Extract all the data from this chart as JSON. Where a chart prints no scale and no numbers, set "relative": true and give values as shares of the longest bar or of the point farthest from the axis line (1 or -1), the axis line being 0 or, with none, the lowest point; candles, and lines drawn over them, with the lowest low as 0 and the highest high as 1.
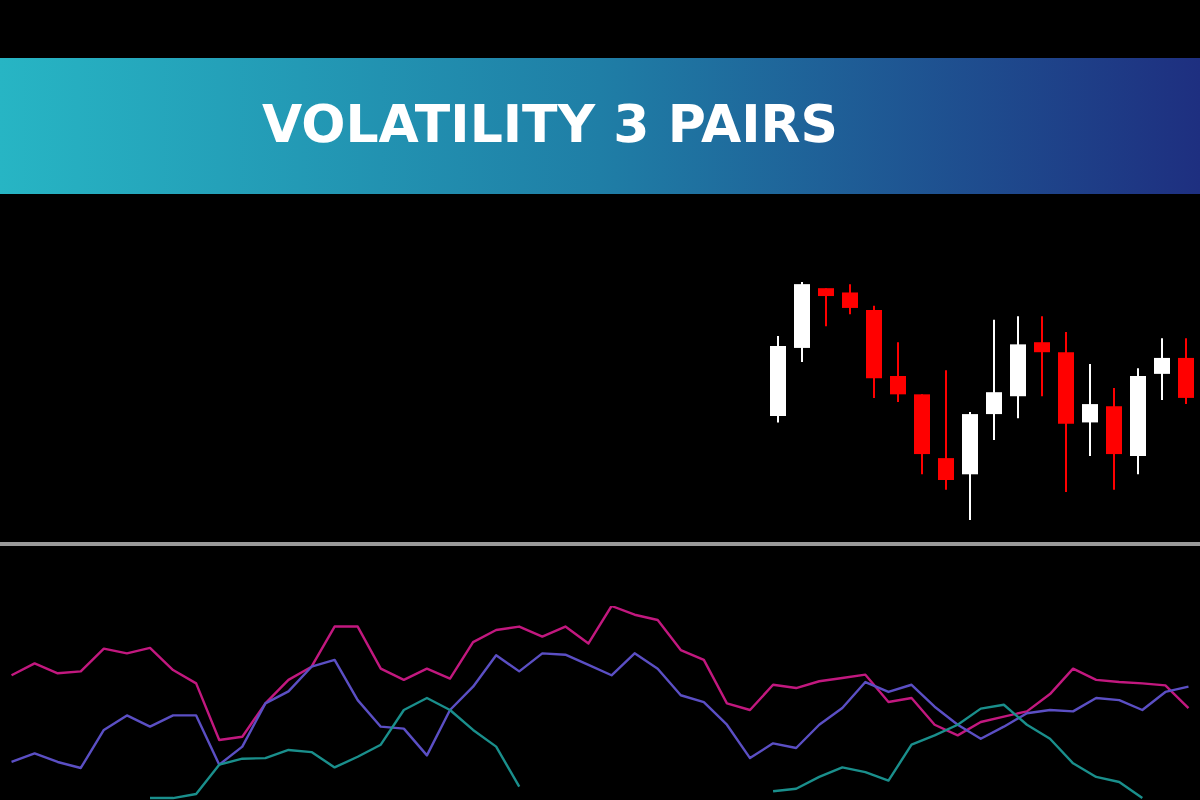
{
  "chart_data": [
    {
      "type": "candlestick",
      "title": "VOLATILITY 3 PAIRS",
      "relative": true,
      "categories": [
        null,
        null,
        null,
        null,
        null,
        null,
        null,
        null,
        null,
        null,
        null,
        null,
        null,
        null,
        null,
        null,
        null,
        null
      ],
      "ohlc": [
        [
          0.437,
          0.773,
          0.41,
          0.731
        ],
        [
          0.723,
          1,
          0.664,
          0.991
        ],
        [
          0.974,
          0.974,
          0.814,
          0.941
        ],
        [
          0.956,
          0.991,
          0.865,
          0.891
        ],
        [
          0.882,
          0.9,
          0.513,
          0.596
        ],
        [
          0.605,
          0.747,
          0.496,
          0.528
        ],
        [
          0.528,
          0.528,
          0.192,
          0.277
        ],
        [
          0.26,
          0.629,
          0.127,
          0.168
        ],
        [
          0.192,
          0.454,
          0,
          0.445
        ],
        [
          0.445,
          0.841,
          0.336,
          0.537
        ],
        [
          0.52,
          0.856,
          0.428,
          0.738
        ],
        [
          0.747,
          0.856,
          0.52,
          0.705
        ],
        [
          0.705,
          0.79,
          0.118,
          0.404
        ],
        [
          0.41,
          0.655,
          0.269,
          0.487
        ],
        [
          0.478,
          0.555,
          0.127,
          0.277
        ],
        [
          0.269,
          0.638,
          0.192,
          0.605
        ],
        [
          0.614,
          0.764,
          0.504,
          0.681
        ],
        [
          0.681,
          0.764,
          0.487,
          0.513
        ]
      ],
      "colors": [
        "#ffffff",
        "#ffffff",
        "#ff0000",
        "#ff0000",
        "#ff0000",
        "#ff0000",
        "#ff0000",
        "#ff0000",
        "#ffffff",
        "#ffffff",
        "#ffffff",
        "#ff0000",
        "#ff0000",
        "#ffffff",
        "#ff0000",
        "#ffffff",
        "#ffffff",
        "#ff0000"
      ]
    },
    {
      "type": "line",
      "relative": true,
      "categories": [
        null,
        null,
        null,
        null,
        null,
        null,
        null,
        null,
        null,
        null,
        null,
        null,
        null,
        null,
        null,
        null,
        null,
        null,
        null,
        null,
        null,
        null,
        null,
        null,
        null,
        null,
        null,
        null,
        null,
        null,
        null,
        null,
        null,
        null,
        null,
        null,
        null,
        null,
        null,
        null,
        null,
        null,
        null,
        null,
        null,
        null,
        null,
        null,
        null,
        null,
        null,
        null
      ],
      "series": [
        {
          "color": "#c2187f",
          "values": [
            0.643,
            0.704,
            0.653,
            0.663,
            0.78,
            0.756,
            0.784,
            0.67,
            0.601,
            0.309,
            0.326,
            0.498,
            0.619,
            0.687,
            0.894,
            0.894,
            0.677,
            0.619,
            0.677,
            0.626,
            0.814,
            0.876,
            0.894,
            0.842,
            0.894,
            0.807,
            1,
            0.955,
            0.928,
            0.773,
            0.722,
            0.498,
            0.464,
            0.594,
            0.577,
            0.612,
            0.629,
            0.646,
            0.505,
            0.526,
            0.388,
            0.333,
            0.402,
            0.43,
            0.457,
            0.546,
            0.677,
            0.619,
            0.608,
            0.601,
            0.591,
            0.474
          ]
        },
        {
          "color": "#5b4fc4",
          "values": [
            0.196,
            0.24,
            0.196,
            0.165,
            0.361,
            0.436,
            0.378,
            0.436,
            0.436,
            0.182,
            0.275,
            0.498,
            0.56,
            0.687,
            0.722,
            0.515,
            0.378,
            0.368,
            0.23,
            0.464,
            0.584,
            0.746,
            0.663,
            0.756,
            0.749,
            0.697,
            0.643,
            0.756,
            0.677,
            0.54,
            0.505,
            0.388,
            0.216,
            0.292,
            0.268,
            0.388,
            0.474,
            0.608,
            0.557,
            0.594,
            0.481,
            0.388,
            0.316,
            0.378,
            0.447,
            0.464,
            0.457,
            0.526,
            0.515,
            0.464,
            0.557,
            0.584
          ]
        },
        {
          "color": "#1a8f8c",
          "values": [
            null,
            null,
            null,
            null,
            null,
            null,
            0.01,
            0.01,
            0.031,
            0.182,
            0.213,
            0.216,
            0.258,
            0.247,
            0.168,
            0.223,
            0.285,
            0.464,
            0.526,
            0.464,
            0.361,
            0.275,
            0.069,
            null,
            null,
            null,
            null,
            null,
            null,
            null,
            null,
            null,
            null,
            0.045,
            0.058,
            0.119,
            0.168,
            0.144,
            0.1,
            0.285,
            0.333,
            0.388,
            0.471,
            0.491,
            0.388,
            0.316,
            0.189,
            0.119,
            0.093,
            0.01,
            null,
            null
          ]
        }
      ]
    }
  ]
}
